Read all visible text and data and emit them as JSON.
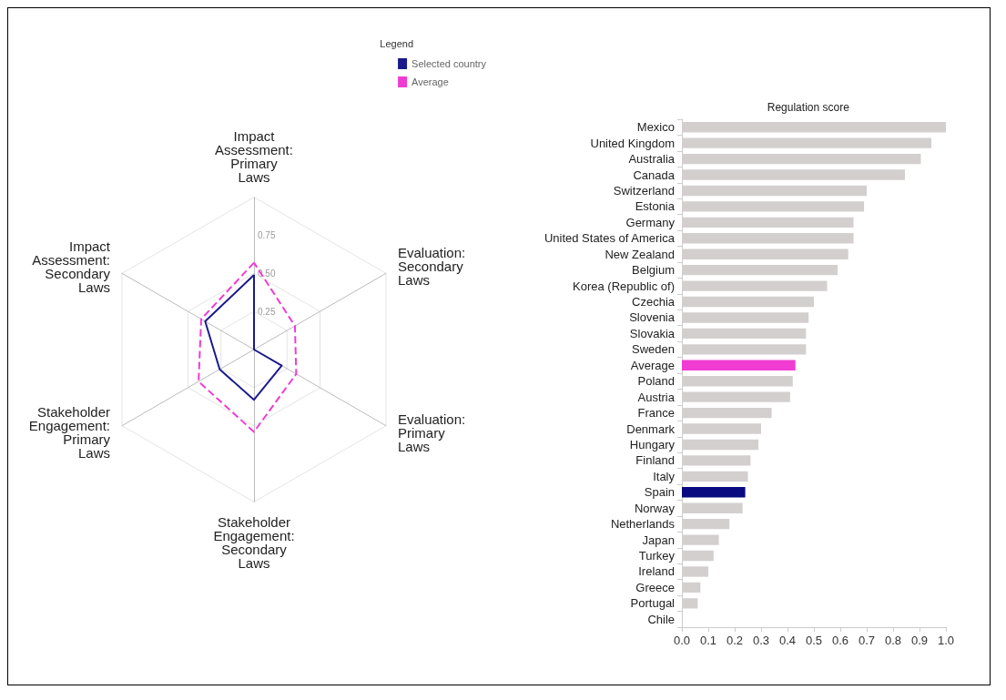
{
  "chart_data": [
    {
      "type": "radar",
      "legend_title": "Legend",
      "legend": "top right",
      "categories": [
        "Impact Assessment: Primary Laws",
        "Evaluation: Secondary Laws",
        "Evaluation: Primary Laws",
        "Stakeholder Engagement: Secondary Laws",
        "Stakeholder Engagement: Primary Laws",
        "Impact Assessment: Secondary Laws"
      ],
      "ylim": [
        0,
        1
      ],
      "yticks": [
        {
          "value": 0.25,
          "label": "0.25"
        },
        {
          "value": 0.5,
          "label": "0.50"
        },
        {
          "value": 0.75,
          "label": "0.75"
        }
      ],
      "series": [
        {
          "name": "Selected country",
          "color": "#1a1a8c",
          "line_style": "solid",
          "values": [
            0.49,
            0,
            0.21,
            0.33,
            0.26,
            0.37
          ]
        },
        {
          "name": "Average",
          "color": "#f03cd2",
          "line_style": "dashed",
          "values": [
            0.57,
            0.31,
            0.32,
            0.54,
            0.42,
            0.4
          ]
        }
      ]
    },
    {
      "type": "bar",
      "orientation": "horizontal",
      "title": "Regulation score",
      "categories": [
        "Mexico",
        "United Kingdom",
        "Australia",
        "Canada",
        "Switzerland",
        "Estonia",
        "Germany",
        "United States of America",
        "New Zealand",
        "Belgium",
        "Korea (Republic of)",
        "Czechia",
        "Slovenia",
        "Slovakia",
        "Sweden",
        "Average",
        "Poland",
        "Austria",
        "France",
        "Denmark",
        "Hungary",
        "Finland",
        "Italy",
        "Spain",
        "Norway",
        "Netherlands",
        "Japan",
        "Turkey",
        "Ireland",
        "Greece",
        "Portugal",
        "Chile"
      ],
      "values": [
        1.0,
        0.945,
        0.905,
        0.845,
        0.7,
        0.69,
        0.65,
        0.65,
        0.63,
        0.59,
        0.55,
        0.5,
        0.48,
        0.47,
        0.47,
        0.43,
        0.42,
        0.41,
        0.34,
        0.3,
        0.29,
        0.26,
        0.25,
        0.24,
        0.23,
        0.18,
        0.14,
        0.12,
        0.1,
        0.07,
        0.06,
        0
      ],
      "colors": [
        "#d3cfcf",
        "#d3cfcf",
        "#d3cfcf",
        "#d3cfcf",
        "#d3cfcf",
        "#d3cfcf",
        "#d3cfcf",
        "#d3cfcf",
        "#d3cfcf",
        "#d3cfcf",
        "#d3cfcf",
        "#d3cfcf",
        "#d3cfcf",
        "#d3cfcf",
        "#d3cfcf",
        "#f03cd2",
        "#d3cfcf",
        "#d3cfcf",
        "#d3cfcf",
        "#d3cfcf",
        "#d3cfcf",
        "#d3cfcf",
        "#d3cfcf",
        "#0a0a80",
        "#d3cfcf",
        "#d3cfcf",
        "#d3cfcf",
        "#d3cfcf",
        "#d3cfcf",
        "#d3cfcf",
        "#d3cfcf",
        "#d3cfcf"
      ],
      "xlim": [
        0,
        1
      ],
      "xticks": [
        {
          "value": 0,
          "label": "0.0"
        },
        {
          "value": 0.1,
          "label": "0.1"
        },
        {
          "value": 0.2,
          "label": "0.2"
        },
        {
          "value": 0.3,
          "label": "0.3"
        },
        {
          "value": 0.4,
          "label": "0.4"
        },
        {
          "value": 0.5,
          "label": "0.5"
        },
        {
          "value": 0.6,
          "label": "0.6"
        },
        {
          "value": 0.7,
          "label": "0.7"
        },
        {
          "value": 0.8,
          "label": "0.8"
        },
        {
          "value": 0.9,
          "label": "0.9"
        },
        {
          "value": 1,
          "label": "1.0"
        }
      ]
    }
  ]
}
